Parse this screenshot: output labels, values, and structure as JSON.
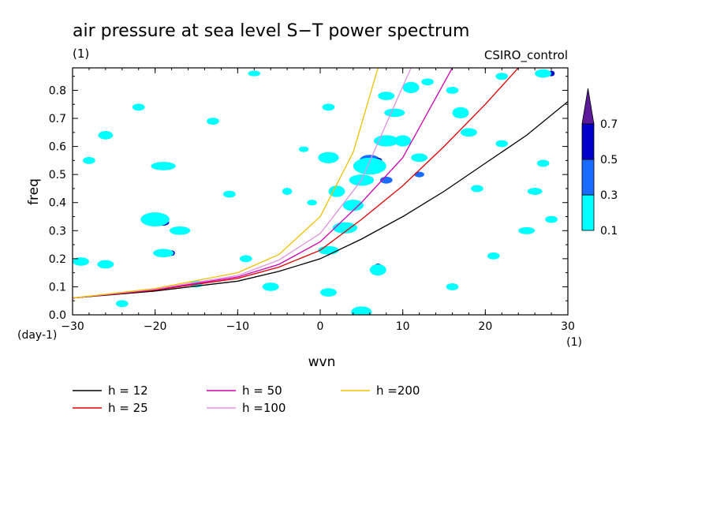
{
  "chart_data": {
    "type": "heatmap",
    "title": "air pressure at sea level S−T power spectrum",
    "units": "(1)",
    "model": "CSIRO_control",
    "xlabel": "wvn",
    "ylabel": "freq",
    "x_units": "(1)",
    "y_units": "(day-1)",
    "xlim": [
      -30,
      30
    ],
    "ylim": [
      0,
      0.88
    ],
    "x_ticks": [
      "−30",
      "−20",
      "−10",
      "0",
      "10",
      "20",
      "30"
    ],
    "x_tick_values": [
      -30,
      -20,
      -10,
      0,
      10,
      20,
      30
    ],
    "y_ticks": [
      "0.0",
      "0.1",
      "0.2",
      "0.3",
      "0.4",
      "0.5",
      "0.6",
      "0.7",
      "0.8"
    ],
    "y_tick_values": [
      0,
      0.1,
      0.2,
      0.3,
      0.4,
      0.5,
      0.6,
      0.7,
      0.8
    ],
    "colorbar": {
      "levels": [
        "0.1",
        "0.3",
        "0.5",
        "0.7"
      ],
      "level_values": [
        0.1,
        0.3,
        0.5,
        0.7
      ],
      "colors": [
        "#00ffff",
        "#1a6bff",
        "#0000c8",
        "#5a1a9a"
      ]
    },
    "blobs": [
      {
        "x": 1,
        "y": 0.56,
        "w": 1.6,
        "h": 0.03,
        "level": 2
      },
      {
        "x": 4,
        "y": 0.39,
        "w": 1.5,
        "h": 0.025,
        "level": 2
      },
      {
        "x": 6,
        "y": 0.55,
        "w": 2.5,
        "h": 0.04,
        "level": 1
      },
      {
        "x": 7,
        "y": 0.55,
        "w": 1.0,
        "h": 0.02,
        "level": 2
      },
      {
        "x": 5,
        "y": 0.01,
        "w": 1.6,
        "h": 0.03,
        "level": 2
      },
      {
        "x": 5,
        "y": 0.0,
        "w": 1.2,
        "h": 0.02,
        "level": 3
      },
      {
        "x": 11,
        "y": 0.81,
        "w": 1.4,
        "h": 0.025,
        "level": 2
      },
      {
        "x": 10,
        "y": 0.62,
        "w": 1.0,
        "h": 0.02,
        "level": 2
      },
      {
        "x": -19,
        "y": 0.33,
        "w": 1.4,
        "h": 0.025,
        "level": 2
      },
      {
        "x": -18,
        "y": 0.22,
        "w": 0.8,
        "h": 0.02,
        "level": 2
      },
      {
        "x": 7,
        "y": 0.17,
        "w": 1.0,
        "h": 0.025,
        "level": 2
      },
      {
        "x": -26,
        "y": 0.64,
        "w": 0.8,
        "h": 0.02,
        "level": 2
      },
      {
        "x": 28,
        "y": 0.86,
        "w": 0.8,
        "h": 0.02,
        "level": 2
      },
      {
        "x": 2,
        "y": 0.44,
        "w": 1.2,
        "h": 0.02,
        "level": 1
      },
      {
        "x": 8,
        "y": 0.48,
        "w": 1.5,
        "h": 0.025,
        "level": 1
      },
      {
        "x": 12,
        "y": 0.5,
        "w": 1.2,
        "h": 0.02,
        "level": 1
      },
      {
        "x": -26,
        "y": 0.18,
        "w": 2.0,
        "h": 0.03,
        "level": 0
      },
      {
        "x": -29,
        "y": 0.19,
        "w": 2.0,
        "h": 0.03,
        "level": 0
      },
      {
        "x": -20,
        "y": 0.34,
        "w": 3.5,
        "h": 0.05,
        "level": 0
      },
      {
        "x": -17,
        "y": 0.3,
        "w": 2.5,
        "h": 0.03,
        "level": 0
      },
      {
        "x": -19,
        "y": 0.22,
        "w": 2.5,
        "h": 0.03,
        "level": 0
      },
      {
        "x": -26,
        "y": 0.64,
        "w": 1.8,
        "h": 0.03,
        "level": 0
      },
      {
        "x": -19,
        "y": 0.53,
        "w": 3.0,
        "h": 0.03,
        "level": 0
      },
      {
        "x": -22,
        "y": 0.74,
        "w": 1.5,
        "h": 0.025,
        "level": 0
      },
      {
        "x": -28,
        "y": 0.55,
        "w": 1.5,
        "h": 0.025,
        "level": 0
      },
      {
        "x": -8,
        "y": 0.86,
        "w": 1.5,
        "h": 0.02,
        "level": 0
      },
      {
        "x": -4,
        "y": 0.44,
        "w": 1.2,
        "h": 0.025,
        "level": 0
      },
      {
        "x": -2,
        "y": 0.59,
        "w": 1.2,
        "h": 0.02,
        "level": 0
      },
      {
        "x": -1,
        "y": 0.4,
        "w": 1.2,
        "h": 0.02,
        "level": 0
      },
      {
        "x": -6,
        "y": 0.1,
        "w": 2.0,
        "h": 0.03,
        "level": 0
      },
      {
        "x": -9,
        "y": 0.2,
        "w": 1.5,
        "h": 0.025,
        "level": 0
      },
      {
        "x": -13,
        "y": 0.69,
        "w": 1.5,
        "h": 0.025,
        "level": 0
      },
      {
        "x": 1,
        "y": 0.56,
        "w": 2.5,
        "h": 0.04,
        "level": 0
      },
      {
        "x": 2,
        "y": 0.44,
        "w": 2.0,
        "h": 0.04,
        "level": 0
      },
      {
        "x": 4,
        "y": 0.39,
        "w": 2.5,
        "h": 0.04,
        "level": 0
      },
      {
        "x": 6,
        "y": 0.53,
        "w": 4.0,
        "h": 0.06,
        "level": 0
      },
      {
        "x": 5,
        "y": 0.48,
        "w": 3.0,
        "h": 0.04,
        "level": 0
      },
      {
        "x": 8,
        "y": 0.62,
        "w": 3.0,
        "h": 0.04,
        "level": 0
      },
      {
        "x": 10,
        "y": 0.62,
        "w": 2.0,
        "h": 0.04,
        "level": 0
      },
      {
        "x": 11,
        "y": 0.81,
        "w": 2.0,
        "h": 0.04,
        "level": 0
      },
      {
        "x": 9,
        "y": 0.72,
        "w": 2.5,
        "h": 0.03,
        "level": 0
      },
      {
        "x": 8,
        "y": 0.78,
        "w": 2.0,
        "h": 0.03,
        "level": 0
      },
      {
        "x": 3,
        "y": 0.31,
        "w": 3.0,
        "h": 0.04,
        "level": 0
      },
      {
        "x": 1,
        "y": 0.23,
        "w": 2.5,
        "h": 0.03,
        "level": 0
      },
      {
        "x": 7,
        "y": 0.16,
        "w": 2.0,
        "h": 0.04,
        "level": 0
      },
      {
        "x": 5,
        "y": 0.01,
        "w": 2.5,
        "h": 0.04,
        "level": 0
      },
      {
        "x": 1,
        "y": 0.08,
        "w": 2.0,
        "h": 0.03,
        "level": 0
      },
      {
        "x": 1,
        "y": 0.74,
        "w": 1.5,
        "h": 0.025,
        "level": 0
      },
      {
        "x": 12,
        "y": 0.56,
        "w": 2.0,
        "h": 0.03,
        "level": 0
      },
      {
        "x": 17,
        "y": 0.72,
        "w": 2.0,
        "h": 0.04,
        "level": 0
      },
      {
        "x": 18,
        "y": 0.65,
        "w": 2.0,
        "h": 0.03,
        "level": 0
      },
      {
        "x": 22,
        "y": 0.61,
        "w": 1.5,
        "h": 0.025,
        "level": 0
      },
      {
        "x": 21,
        "y": 0.21,
        "w": 1.5,
        "h": 0.025,
        "level": 0
      },
      {
        "x": 25,
        "y": 0.3,
        "w": 2.0,
        "h": 0.025,
        "level": 0
      },
      {
        "x": 28,
        "y": 0.34,
        "w": 1.5,
        "h": 0.025,
        "level": 0
      },
      {
        "x": 27,
        "y": 0.86,
        "w": 2.0,
        "h": 0.03,
        "level": 0
      },
      {
        "x": 22,
        "y": 0.85,
        "w": 1.5,
        "h": 0.025,
        "level": 0
      },
      {
        "x": 26,
        "y": 0.44,
        "w": 1.8,
        "h": 0.025,
        "level": 0
      },
      {
        "x": 19,
        "y": 0.45,
        "w": 1.5,
        "h": 0.025,
        "level": 0
      },
      {
        "x": 16,
        "y": 0.1,
        "w": 1.5,
        "h": 0.025,
        "level": 0
      },
      {
        "x": 27,
        "y": 0.54,
        "w": 1.5,
        "h": 0.025,
        "level": 0
      },
      {
        "x": -11,
        "y": 0.43,
        "w": 1.5,
        "h": 0.025,
        "level": 0
      },
      {
        "x": -15,
        "y": 0.11,
        "w": 1.5,
        "h": 0.025,
        "level": 0
      },
      {
        "x": -24,
        "y": 0.04,
        "w": 1.5,
        "h": 0.025,
        "level": 0
      },
      {
        "x": 13,
        "y": 0.83,
        "w": 1.5,
        "h": 0.025,
        "level": 0
      },
      {
        "x": 16,
        "y": 0.8,
        "w": 1.5,
        "h": 0.025,
        "level": 0
      }
    ],
    "series": [
      {
        "name": "h = 12",
        "color": "#000000",
        "x": [
          -30,
          -20,
          -10,
          -5,
          0,
          5,
          10,
          15,
          20,
          25,
          30
        ],
        "y": [
          0.06,
          0.085,
          0.12,
          0.155,
          0.2,
          0.27,
          0.35,
          0.44,
          0.54,
          0.64,
          0.76
        ]
      },
      {
        "name": "h = 25",
        "color": "#e00000",
        "x": [
          -30,
          -20,
          -10,
          -5,
          0,
          5,
          10,
          15,
          20,
          24
        ],
        "y": [
          0.06,
          0.088,
          0.13,
          0.17,
          0.23,
          0.34,
          0.46,
          0.6,
          0.75,
          0.88
        ]
      },
      {
        "name": "h = 50",
        "color": "#d000b0",
        "x": [
          -30,
          -20,
          -10,
          -5,
          0,
          5,
          10,
          16
        ],
        "y": [
          0.06,
          0.09,
          0.135,
          0.18,
          0.26,
          0.4,
          0.56,
          0.88
        ]
      },
      {
        "name": "h =100",
        "color": "#e090e0",
        "x": [
          -30,
          -20,
          -10,
          -5,
          0,
          5,
          11
        ],
        "y": [
          0.06,
          0.092,
          0.14,
          0.195,
          0.29,
          0.48,
          0.88
        ]
      },
      {
        "name": "h =200",
        "color": "#f0c000",
        "x": [
          -30,
          -20,
          -10,
          -5,
          0,
          4,
          7
        ],
        "y": [
          0.06,
          0.094,
          0.15,
          0.215,
          0.35,
          0.58,
          0.88
        ]
      }
    ]
  }
}
